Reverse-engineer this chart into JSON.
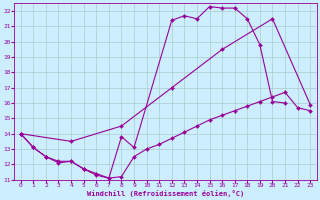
{
  "xlabel": "Windchill (Refroidissement éolien,°C)",
  "bg_color": "#cceeff",
  "grid_color": "#aacccc",
  "line_color": "#990099",
  "xlim": [
    -0.5,
    23.5
  ],
  "ylim": [
    11,
    22.5
  ],
  "xticks": [
    0,
    1,
    2,
    3,
    4,
    5,
    6,
    7,
    8,
    9,
    10,
    11,
    12,
    13,
    14,
    15,
    16,
    17,
    18,
    19,
    20,
    21,
    22,
    23
  ],
  "yticks": [
    11,
    12,
    13,
    14,
    15,
    16,
    17,
    18,
    19,
    20,
    21,
    22
  ],
  "curve1_x": [
    0,
    1,
    2,
    3,
    4,
    5,
    6,
    7,
    8,
    9,
    12,
    13,
    14,
    15,
    16,
    17,
    18,
    19,
    20,
    21
  ],
  "curve1_y": [
    14.0,
    13.1,
    12.5,
    12.1,
    12.2,
    11.7,
    11.3,
    11.1,
    13.8,
    13.1,
    21.4,
    21.7,
    21.5,
    22.3,
    22.2,
    22.2,
    21.5,
    19.8,
    16.1,
    16.0
  ],
  "curve2_x": [
    0,
    1,
    2,
    3,
    4,
    5,
    6,
    7,
    8,
    9,
    10,
    11,
    12,
    13,
    14,
    15,
    16,
    17,
    18,
    19,
    20,
    21,
    22,
    23
  ],
  "curve2_y": [
    14.0,
    13.1,
    12.5,
    12.2,
    12.2,
    11.7,
    11.4,
    11.1,
    11.2,
    12.5,
    13.0,
    13.3,
    13.7,
    14.1,
    14.5,
    14.9,
    15.2,
    15.5,
    15.8,
    16.1,
    16.4,
    16.7,
    15.7,
    15.5
  ],
  "curve3_x": [
    0,
    4,
    8,
    12,
    16,
    20,
    23
  ],
  "curve3_y": [
    14.0,
    13.5,
    14.5,
    17.0,
    19.5,
    21.5,
    15.9
  ]
}
